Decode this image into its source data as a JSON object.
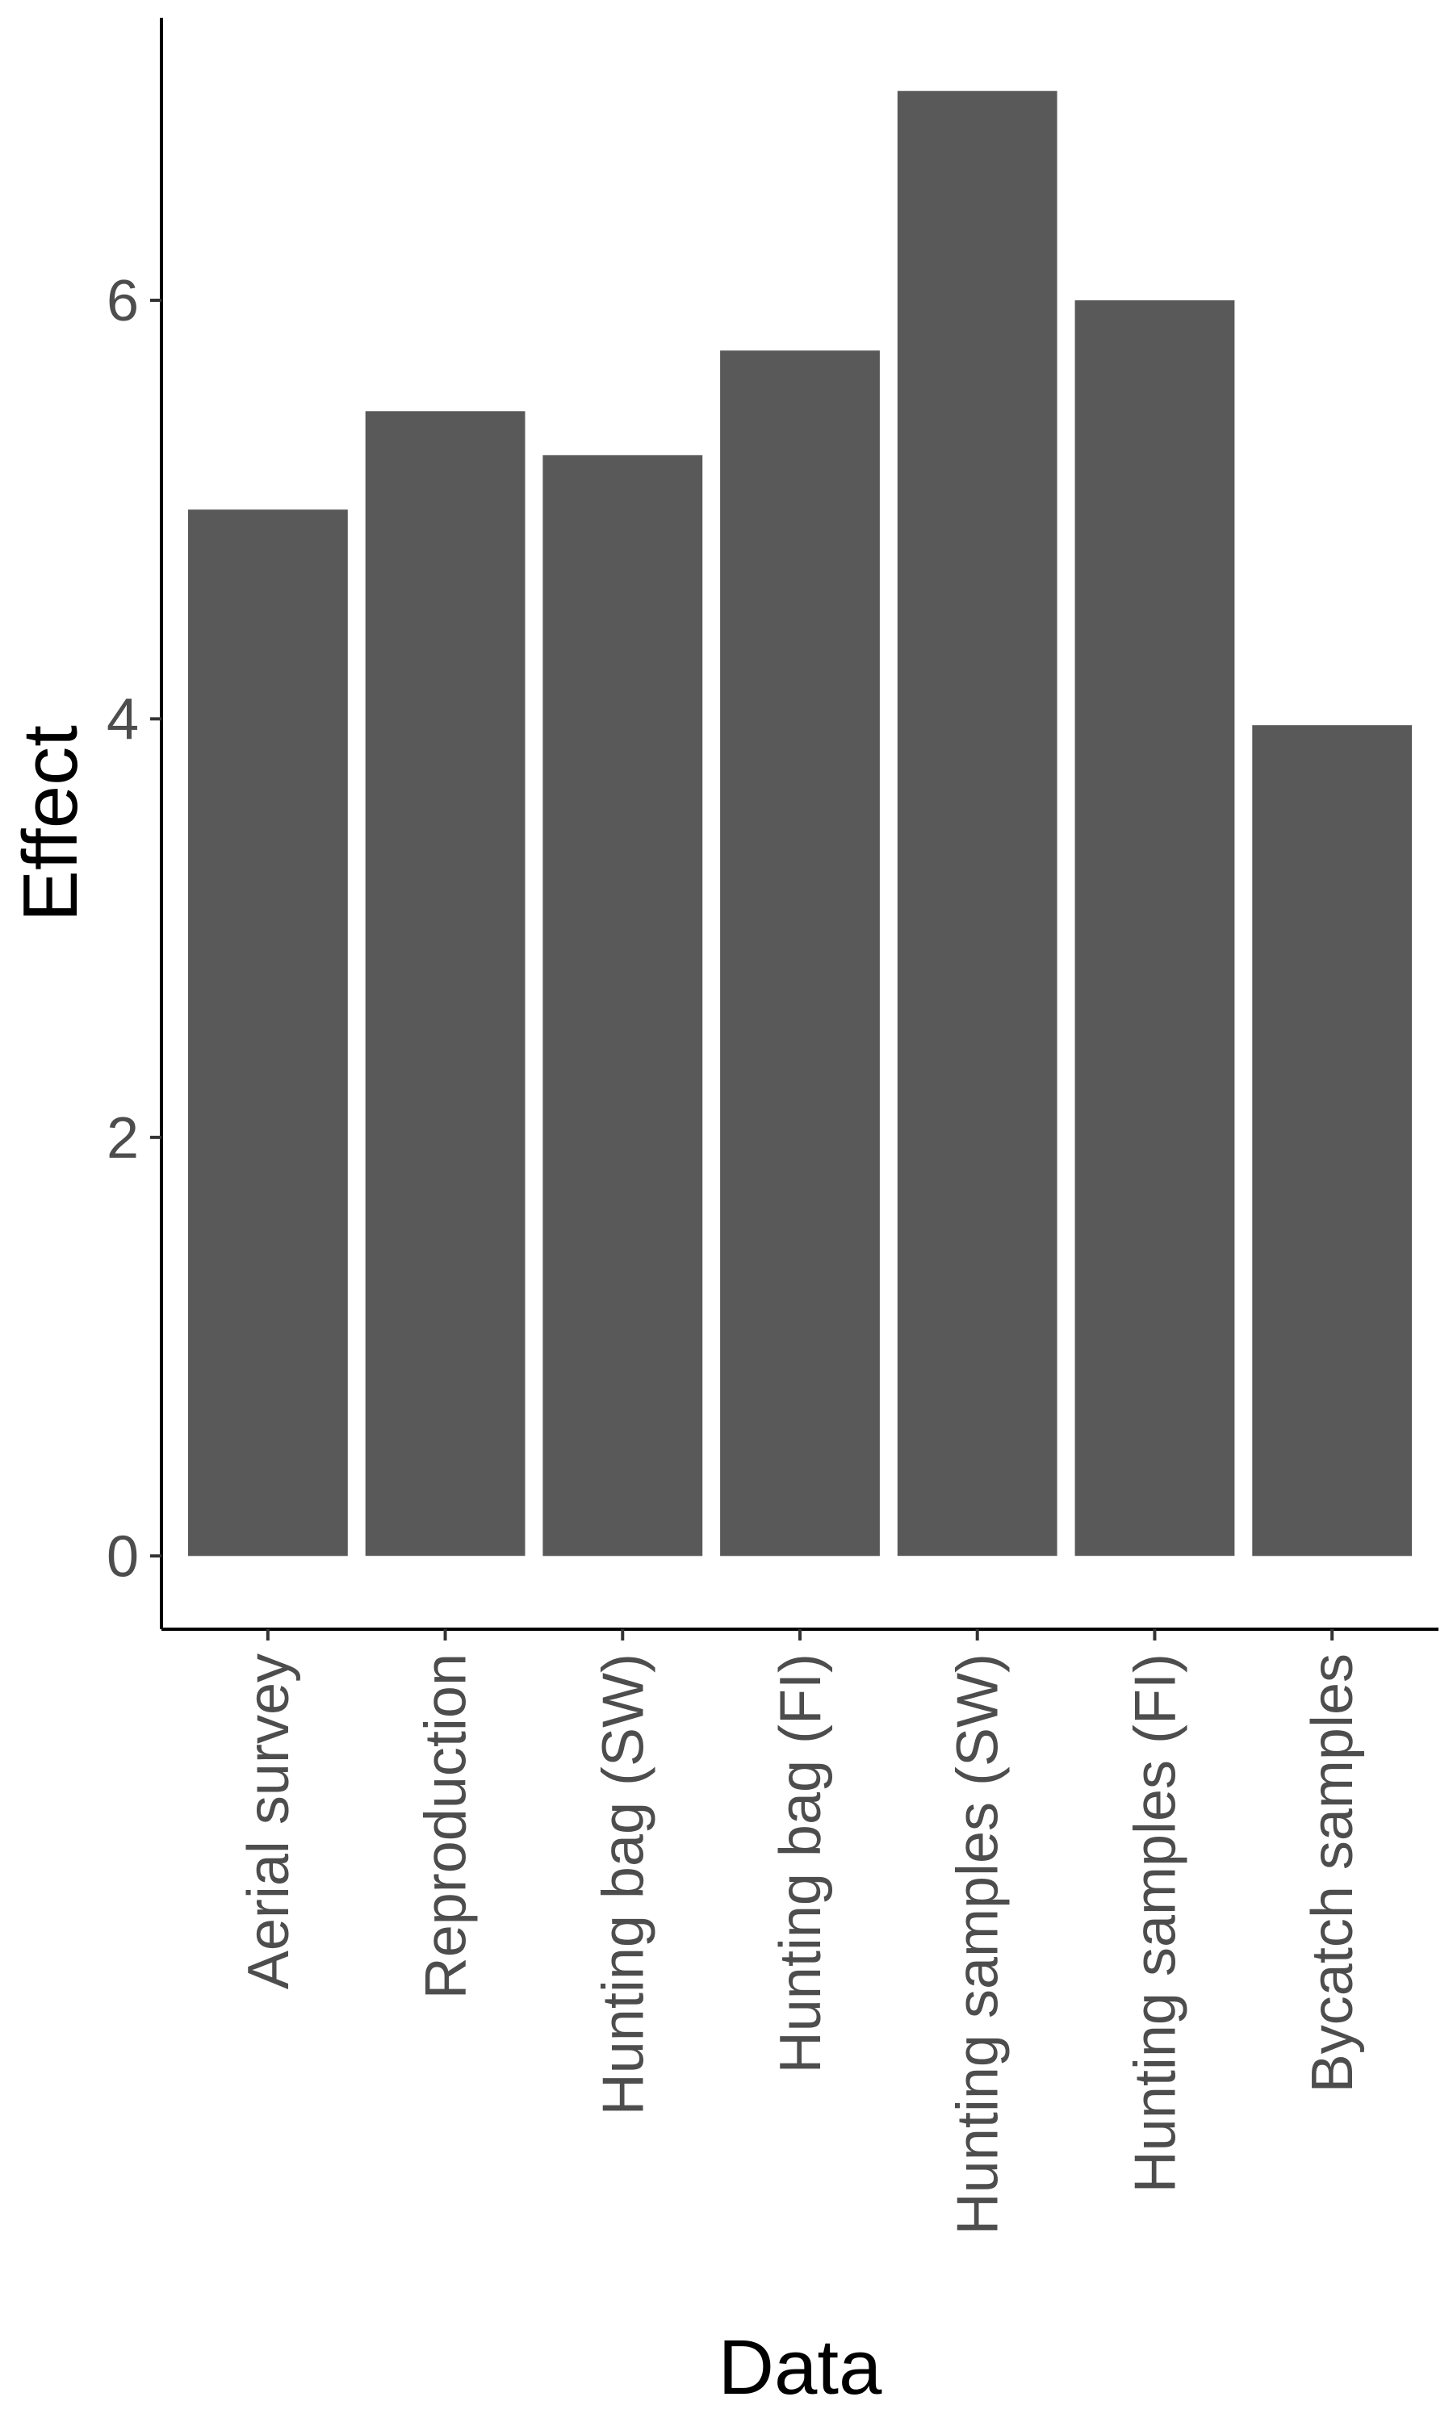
{
  "chart_data": {
    "type": "bar",
    "title": "",
    "xlabel": "Data",
    "ylabel": "Effect",
    "categories": [
      "Aerial survey",
      "Reproduction",
      "Hunting bag (SW)",
      "Hunting bag (FI)",
      "Hunting samples (SW)",
      "Hunting samples (FI)",
      "Bycatch samples"
    ],
    "values": [
      5.0,
      5.47,
      5.26,
      5.76,
      7.0,
      6.0,
      3.97
    ],
    "ylim": [
      -0.35,
      7.35
    ],
    "yticks": [
      0,
      2,
      4,
      6
    ],
    "grid": false,
    "legend": "none",
    "bar_color": "#595959",
    "axis_color": "#000000",
    "tick_label_color": "#4d4d4d"
  }
}
